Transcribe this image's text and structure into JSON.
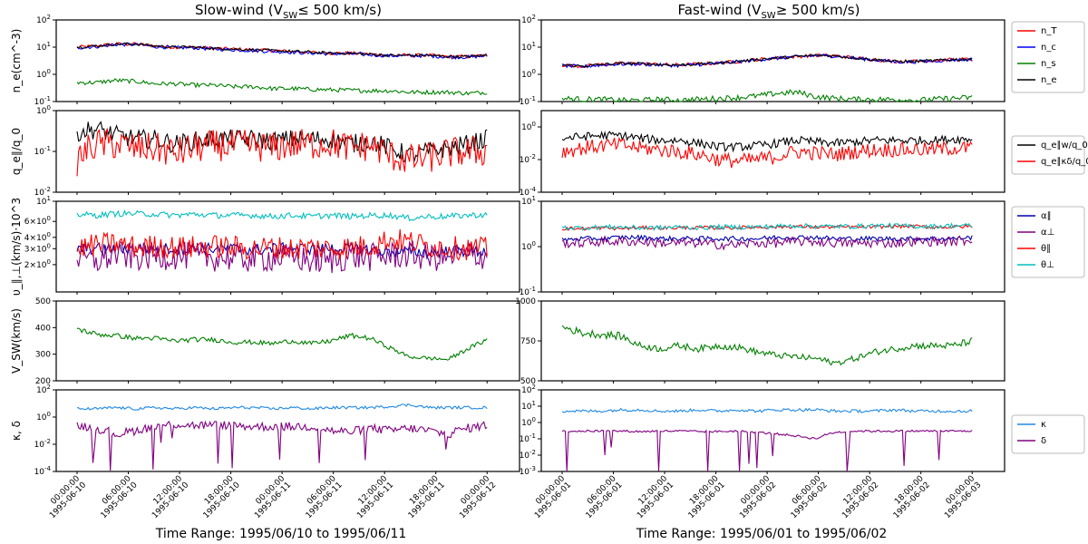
{
  "left_title": "Slow-wind (V",
  "left_title_sub": "SW",
  "left_title_rest": "≤  500 km/s)",
  "right_title": "Fast-wind (V",
  "right_title_sub": "SW",
  "right_title_rest": "≥  500 km/s)",
  "left_range": "Time Range: 1995/06/10 to 1995/06/11",
  "right_range": "Time Range: 1995/06/01 to 1995/06/02",
  "colors": {
    "red": "#ff0000",
    "blue": "#0000ff",
    "green": "#008000",
    "black": "#000000",
    "navy": "#0000aa",
    "purple": "#800080",
    "cyan": "#00bfbf",
    "skyblue": "#1e88e5"
  },
  "chart_data": [
    {
      "type": "line",
      "panel": "density",
      "ylabel": "n_e(cm^-3)",
      "ylim": [
        0.1,
        100
      ],
      "yscale": "log",
      "left_yticks": [
        "10^-1",
        "10^0",
        "10^1",
        "10^2"
      ],
      "right_yticks": [
        "10^-1",
        "10^0",
        "10^1",
        "10^2"
      ],
      "legend": [
        "n_T",
        "n_c",
        "n_s",
        "n_e"
      ],
      "left_series": [
        {
          "name": "n_T",
          "color": "red",
          "base": [
            10,
            11,
            13,
            13,
            11,
            10,
            10,
            9,
            8.5,
            8,
            7.5,
            7,
            6.5,
            6,
            6,
            5.5,
            5,
            5,
            5,
            4.5,
            4.5,
            5
          ],
          "noise": 0.05
        },
        {
          "name": "n_c",
          "color": "blue",
          "base": [
            9.5,
            10.5,
            12.5,
            12.5,
            10.5,
            9.5,
            9.5,
            8.5,
            8,
            7.5,
            7,
            6.5,
            6,
            5.7,
            5.7,
            5.2,
            4.8,
            4.8,
            4.8,
            4.3,
            4.3,
            4.8
          ],
          "noise": 0.05
        },
        {
          "name": "n_s",
          "color": "green",
          "base": [
            0.5,
            0.5,
            0.6,
            0.55,
            0.45,
            0.45,
            0.4,
            0.4,
            0.35,
            0.35,
            0.3,
            0.3,
            0.28,
            0.27,
            0.26,
            0.25,
            0.25,
            0.22,
            0.22,
            0.22,
            0.2,
            0.22
          ],
          "noise": 0.06
        },
        {
          "name": "n_e",
          "color": "black",
          "base": [
            10,
            11,
            13,
            13,
            11,
            10,
            10,
            9,
            8.5,
            8,
            7.5,
            7,
            6.5,
            6,
            6,
            5.5,
            5,
            5,
            5,
            4.5,
            4.5,
            5
          ],
          "noise": 0.04
        }
      ],
      "right_series": [
        {
          "name": "n_T",
          "color": "red",
          "base": [
            2.2,
            2,
            2.3,
            2.5,
            2.5,
            2.3,
            2.2,
            2.4,
            2.6,
            3,
            3.5,
            4,
            4.5,
            5,
            4.8,
            4,
            3.5,
            3,
            3,
            3.2,
            3.5,
            3.6
          ],
          "noise": 0.05
        },
        {
          "name": "n_c",
          "color": "blue",
          "base": [
            2.1,
            1.9,
            2.2,
            2.4,
            2.4,
            2.2,
            2.1,
            2.3,
            2.5,
            2.9,
            3.4,
            3.9,
            4.4,
            4.9,
            4.7,
            3.9,
            3.4,
            2.9,
            2.9,
            3.1,
            3.4,
            3.5
          ],
          "noise": 0.05
        },
        {
          "name": "n_s",
          "color": "green",
          "base": [
            0.13,
            0.12,
            0.12,
            0.11,
            0.11,
            0.12,
            0.11,
            0.12,
            0.13,
            0.14,
            0.16,
            0.2,
            0.22,
            0.15,
            0.13,
            0.12,
            0.12,
            0.12,
            0.11,
            0.12,
            0.13,
            0.14
          ],
          "noise": 0.08
        },
        {
          "name": "n_e",
          "color": "black",
          "base": [
            2.2,
            2,
            2.3,
            2.5,
            2.5,
            2.3,
            2.2,
            2.4,
            2.6,
            3,
            3.5,
            4,
            4.5,
            5,
            4.8,
            4,
            3.5,
            3,
            3,
            3.2,
            3.5,
            3.6
          ],
          "noise": 0.04
        }
      ]
    },
    {
      "type": "line",
      "panel": "heatflux",
      "ylabel": "q_e∥/q_0",
      "left_ylim": [
        0.01,
        1
      ],
      "right_ylim": [
        0.0001,
        10
      ],
      "yscale": "log",
      "left_yticks": [
        "10^-2",
        "10^-1",
        "10^0"
      ],
      "right_yticks": [
        "10^-4",
        "10^-2",
        "10^0"
      ],
      "legend": [
        "q_e∥w/q_0",
        "q_e∥κδ/q_0"
      ],
      "left_series": [
        {
          "name": "q_e∥w/q_0",
          "color": "black",
          "base": [
            0.3,
            0.35,
            0.25,
            0.2,
            0.2,
            0.15,
            0.18,
            0.2,
            0.2,
            0.2,
            0.18,
            0.2,
            0.2,
            0.2,
            0.15,
            0.18,
            0.12,
            0.08,
            0.1,
            0.12,
            0.15,
            0.2
          ],
          "noise": 0.18
        },
        {
          "name": "q_e∥κδ/q_0",
          "color": "red",
          "base": [
            0.06,
            0.15,
            0.15,
            0.12,
            0.12,
            0.09,
            0.12,
            0.14,
            0.14,
            0.14,
            0.12,
            0.15,
            0.15,
            0.16,
            0.12,
            0.14,
            0.08,
            0.06,
            0.07,
            0.09,
            0.1,
            0.1
          ],
          "noise": 0.3
        }
      ],
      "right_series": [
        {
          "name": "q_e∥w/q_0",
          "color": "black",
          "base": [
            0.2,
            0.25,
            0.3,
            0.3,
            0.2,
            0.15,
            0.15,
            0.1,
            0.06,
            0.06,
            0.07,
            0.1,
            0.15,
            0.12,
            0.1,
            0.12,
            0.15,
            0.15,
            0.15,
            0.15,
            0.18,
            0.18
          ],
          "noise": 0.2
        },
        {
          "name": "q_e∥κδ/q_0",
          "color": "red",
          "base": [
            0.03,
            0.05,
            0.07,
            0.08,
            0.05,
            0.04,
            0.03,
            0.02,
            0.01,
            0.008,
            0.01,
            0.015,
            0.03,
            0.025,
            0.02,
            0.03,
            0.04,
            0.04,
            0.04,
            0.04,
            0.05,
            0.05
          ],
          "noise": 0.35
        }
      ]
    },
    {
      "type": "line",
      "panel": "thermal",
      "ylabel": "υ_∥,⊥(km/s)·10^3",
      "ylim": [
        0.1,
        10
      ],
      "yscale": "log",
      "left_ylim": [
        1,
        10
      ],
      "left_yticks": [
        "2×10^0",
        "3×10^0",
        "4×10^0",
        "6×10^0",
        "10^1"
      ],
      "right_yticks": [
        "10^-1",
        "10^0",
        "10^1"
      ],
      "legend": [
        "α∥",
        "α⊥",
        "θ∥",
        "θ⊥"
      ],
      "left_series": [
        {
          "name": "α∥",
          "color": "navy",
          "base": [
            3,
            3,
            3,
            3,
            3,
            3,
            3,
            3,
            3,
            2.9,
            3,
            3,
            3,
            3,
            3,
            2.9,
            2.8,
            2.8,
            2.7,
            2.8,
            2.8,
            2.8
          ],
          "noise": 0.05
        },
        {
          "name": "α⊥",
          "color": "purple",
          "base": [
            2.4,
            2.2,
            2.6,
            2.4,
            2.5,
            2.5,
            2.5,
            2.4,
            2.4,
            2.3,
            2.4,
            2.4,
            2.2,
            2.2,
            2.5,
            2.4,
            2.5,
            2.6,
            2.4,
            2.4,
            2.6,
            2.5
          ],
          "noise": 0.12
        },
        {
          "name": "θ∥",
          "color": "red",
          "base": [
            3,
            3.3,
            3.4,
            3.1,
            3.2,
            3.1,
            3.1,
            3.2,
            3.1,
            3,
            3.1,
            3,
            3.1,
            3,
            3.1,
            3.2,
            3.8,
            3.6,
            3.2,
            3.1,
            3,
            3
          ],
          "noise": 0.1
        },
        {
          "name": "θ⊥",
          "color": "cyan",
          "base": [
            7.2,
            7,
            7.3,
            7.3,
            7.2,
            7,
            7.2,
            7,
            7,
            7,
            6.8,
            7,
            6.8,
            7,
            6.8,
            7,
            7,
            6.5,
            6.8,
            6.8,
            7,
            7.1
          ],
          "noise": 0.025
        }
      ],
      "right_series": [
        {
          "name": "α∥",
          "color": "navy",
          "base": [
            1.4,
            1.5,
            1.5,
            1.6,
            1.6,
            1.5,
            1.5,
            1.5,
            1.5,
            1.5,
            1.5,
            1.6,
            1.6,
            1.6,
            1.5,
            1.5,
            1.5,
            1.5,
            1.5,
            1.5,
            1.5,
            1.6
          ],
          "noise": 0.04
        },
        {
          "name": "α⊥",
          "color": "purple",
          "base": [
            1.2,
            1.2,
            1.3,
            1.3,
            1.3,
            1.2,
            1.2,
            1.2,
            1.1,
            1.1,
            1.2,
            1.2,
            1.3,
            1.3,
            1.2,
            1.2,
            1.2,
            1.2,
            1.3,
            1.3,
            1.3,
            1.4
          ],
          "noise": 0.08
        },
        {
          "name": "θ∥",
          "color": "red",
          "base": [
            2.5,
            2.5,
            2.6,
            2.5,
            2.6,
            2.6,
            2.6,
            2.6,
            2.6,
            2.6,
            2.7,
            2.7,
            2.8,
            2.7,
            2.7,
            2.7,
            2.7,
            2.8,
            2.8,
            2.7,
            2.7,
            2.8
          ],
          "noise": 0.03
        },
        {
          "name": "θ⊥",
          "color": "cyan",
          "base": [
            2.6,
            2.6,
            2.7,
            2.7,
            2.6,
            2.6,
            2.7,
            2.6,
            2.7,
            2.7,
            2.7,
            2.8,
            2.9,
            2.8,
            2.8,
            2.8,
            2.9,
            2.9,
            2.8,
            2.8,
            2.9,
            2.9
          ],
          "noise": 0.04
        }
      ]
    },
    {
      "type": "line",
      "panel": "speed",
      "ylabel": "V_SW(km/s)",
      "left_ylim": [
        200,
        500
      ],
      "right_ylim": [
        500,
        1000
      ],
      "yscale": "linear",
      "left_yticks": [
        "200",
        "300",
        "400",
        "500"
      ],
      "right_yticks": [
        "500",
        "750",
        "1000"
      ],
      "left_series": [
        {
          "name": "V_SW",
          "color": "green",
          "base": [
            395,
            375,
            370,
            360,
            360,
            350,
            355,
            355,
            345,
            345,
            340,
            350,
            340,
            350,
            370,
            360,
            325,
            290,
            285,
            280,
            320,
            355
          ],
          "noise": 0.025
        }
      ],
      "right_series": [
        {
          "name": "V_SW",
          "color": "green",
          "base": [
            840,
            800,
            790,
            780,
            720,
            700,
            720,
            700,
            720,
            710,
            680,
            660,
            650,
            640,
            610,
            640,
            680,
            700,
            720,
            720,
            720,
            750
          ],
          "noise": 0.03
        }
      ]
    },
    {
      "type": "line",
      "panel": "kappa-delta",
      "ylabel": "κ, δ",
      "left_ylim": [
        0.0001,
        100
      ],
      "right_ylim": [
        0.001,
        100
      ],
      "yscale": "log",
      "left_yticks": [
        "10^-4",
        "10^-2",
        "10^0",
        "10^2"
      ],
      "right_yticks": [
        "10^-3",
        "10^-2",
        "10^-1",
        "10^0",
        "10^1",
        "10^2"
      ],
      "legend": [
        "κ",
        "δ"
      ],
      "left_series": [
        {
          "name": "κ",
          "color": "skyblue",
          "base": [
            4,
            4,
            5,
            4,
            5,
            4,
            5,
            4,
            5,
            5,
            4,
            5,
            4,
            5,
            5,
            5,
            6,
            8,
            5,
            5,
            5,
            5
          ],
          "noise": 0.08
        },
        {
          "name": "δ",
          "color": "purple",
          "base": [
            0.25,
            0.15,
            0.05,
            0.1,
            0.2,
            0.3,
            0.25,
            0.25,
            0.25,
            0.2,
            0.2,
            0.2,
            0.2,
            0.1,
            0.08,
            0.15,
            0.1,
            0.15,
            0.1,
            0.05,
            0.15,
            0.25
          ],
          "noise": 0.25,
          "dips": true
        }
      ],
      "right_series": [
        {
          "name": "κ",
          "color": "skyblue",
          "base": [
            5,
            5,
            5,
            6,
            6,
            5,
            5,
            6,
            5,
            6,
            5,
            6,
            6,
            6,
            5,
            5,
            5,
            6,
            5,
            5,
            5,
            5
          ],
          "noise": 0.07
        },
        {
          "name": "δ",
          "color": "purple",
          "base": [
            0.3,
            0.3,
            0.3,
            0.3,
            0.28,
            0.3,
            0.3,
            0.28,
            0.28,
            0.3,
            0.25,
            0.2,
            0.15,
            0.1,
            0.25,
            0.3,
            0.3,
            0.3,
            0.3,
            0.3,
            0.3,
            0.3
          ],
          "noise": 0.05,
          "dips": true
        }
      ]
    }
  ],
  "left_xticks": [
    [
      "00:00:00",
      "1995-06-10"
    ],
    [
      "06:00:00",
      "1995-06-10"
    ],
    [
      "12:00:00",
      "1995-06-10"
    ],
    [
      "18:00:00",
      "1995-06-10"
    ],
    [
      "00:00:00",
      "1995-06-11"
    ],
    [
      "06:00:00",
      "1995-06-11"
    ],
    [
      "12:00:00",
      "1995-06-11"
    ],
    [
      "18:00:00",
      "1995-06-11"
    ],
    [
      "00:00:00",
      "1995-06-12"
    ]
  ],
  "right_xticks": [
    [
      "00:00:00",
      "1995-06-01"
    ],
    [
      "06:00:00",
      "1995-06-01"
    ],
    [
      "12:00:00",
      "1995-06-01"
    ],
    [
      "18:00:00",
      "1995-06-01"
    ],
    [
      "00:00:00",
      "1995-06-02"
    ],
    [
      "06:00:00",
      "1995-06-02"
    ],
    [
      "12:00:00",
      "1995-06-02"
    ],
    [
      "18:00:00",
      "1995-06-02"
    ],
    [
      "00:00:00",
      "1995-06-03"
    ]
  ]
}
